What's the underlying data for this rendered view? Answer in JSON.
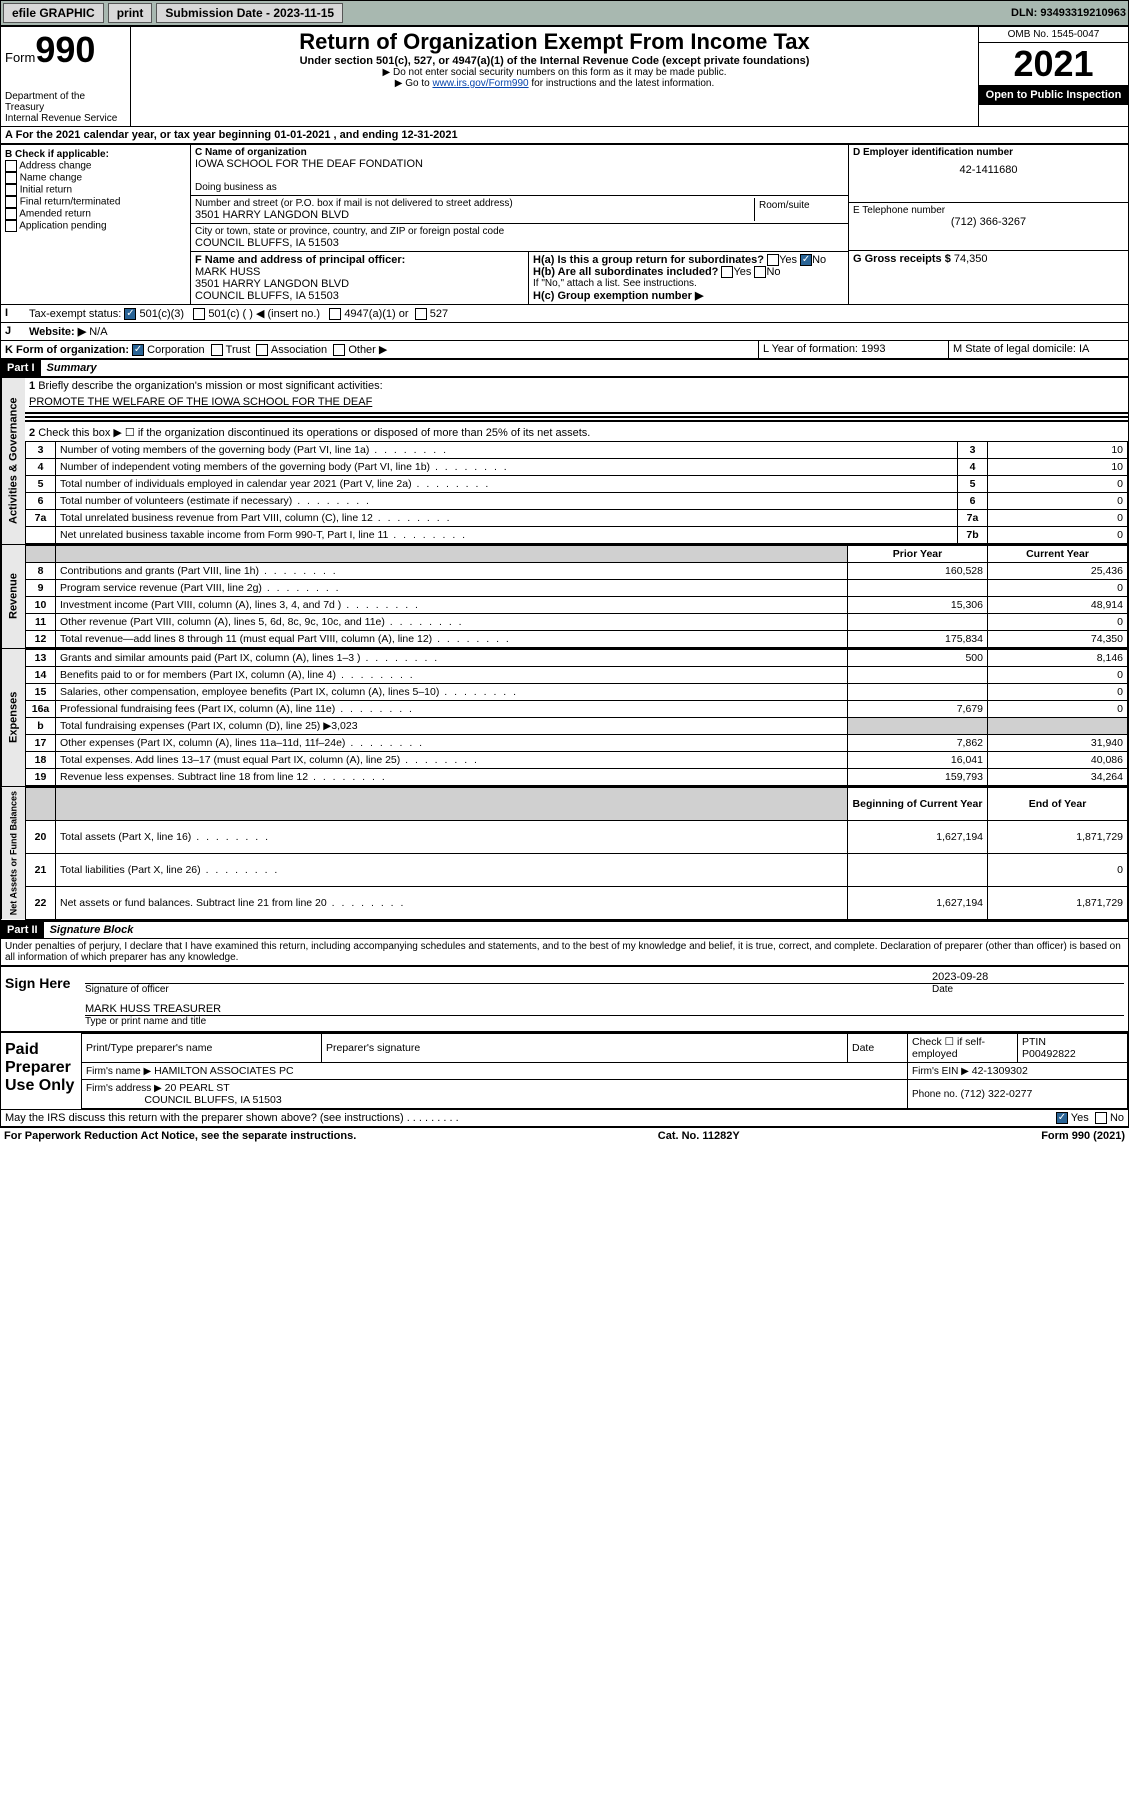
{
  "topbar": {
    "efile": "efile GRAPHIC",
    "print": "print",
    "sub_label": "Submission Date - 2023-11-15",
    "dln": "DLN: 93493319210963"
  },
  "header": {
    "form_label": "Form",
    "form_num": "990",
    "dept": "Department of the Treasury",
    "irs": "Internal Revenue Service",
    "title": "Return of Organization Exempt From Income Tax",
    "sub1": "Under section 501(c), 527, or 4947(a)(1) of the Internal Revenue Code (except private foundations)",
    "sub2": "▶ Do not enter social security numbers on this form as it may be made public.",
    "sub3_pre": "▶ Go to ",
    "sub3_link": "www.irs.gov/Form990",
    "sub3_post": " for instructions and the latest information.",
    "omb": "OMB No. 1545-0047",
    "year": "2021",
    "open": "Open to Public Inspection"
  },
  "line_a": "For the 2021 calendar year, or tax year beginning 01-01-2021   , and ending 12-31-2021",
  "section_b": {
    "label": "B Check if applicable:",
    "opts": [
      "Address change",
      "Name change",
      "Initial return",
      "Final return/terminated",
      "Amended return",
      "Application pending"
    ],
    "c_label": "C Name of organization",
    "org_name": "IOWA SCHOOL FOR THE DEAF FONDATION",
    "dba": "Doing business as",
    "addr_label": "Number and street (or P.O. box if mail is not delivered to street address)",
    "room": "Room/suite",
    "addr": "3501 HARRY LANGDON BLVD",
    "city_label": "City or town, state or province, country, and ZIP or foreign postal code",
    "city": "COUNCIL BLUFFS, IA  51503",
    "d_label": "D Employer identification number",
    "ein": "42-1411680",
    "e_label": "E Telephone number",
    "phone": "(712) 366-3267",
    "g_label": "G Gross receipts $",
    "g_val": "74,350",
    "f_label": "F Name and address of principal officer:",
    "f_name": "MARK HUSS",
    "f_addr1": "3501 HARRY LANGDON BLVD",
    "f_addr2": "COUNCIL BLUFFS, IA  51503",
    "ha": "H(a)  Is this a group return for subordinates?",
    "hb": "H(b)  Are all subordinates included?",
    "hb_note": "If \"No,\" attach a list. See instructions.",
    "hc": "H(c)  Group exemption number ▶",
    "yes": "Yes",
    "no": "No"
  },
  "line_i": {
    "label": "Tax-exempt status:",
    "opt1": "501(c)(3)",
    "opt2": "501(c) (  ) ◀ (insert no.)",
    "opt3": "4947(a)(1) or",
    "opt4": "527"
  },
  "line_j": {
    "label": "Website: ▶",
    "val": "N/A"
  },
  "line_k": {
    "label": "K Form of organization:",
    "opts": [
      "Corporation",
      "Trust",
      "Association",
      "Other ▶"
    ],
    "l": "L Year of formation: 1993",
    "m": "M State of legal domicile: IA"
  },
  "part1": {
    "num": "Part I",
    "title": "Summary",
    "q1": "Briefly describe the organization's mission or most significant activities:",
    "q1_ans": "PROMOTE THE WELFARE OF THE IOWA SCHOOL FOR THE DEAF",
    "q2": "Check this box ▶ ☐  if the organization discontinued its operations or disposed of more than 25% of its net assets.",
    "gov_label": "Activities & Governance",
    "rev_label": "Revenue",
    "exp_label": "Expenses",
    "net_label": "Net Assets or Fund Balances",
    "rows_gov": [
      {
        "n": "3",
        "t": "Number of voting members of the governing body (Part VI, line 1a)",
        "b": "3",
        "v": "10"
      },
      {
        "n": "4",
        "t": "Number of independent voting members of the governing body (Part VI, line 1b)",
        "b": "4",
        "v": "10"
      },
      {
        "n": "5",
        "t": "Total number of individuals employed in calendar year 2021 (Part V, line 2a)",
        "b": "5",
        "v": "0"
      },
      {
        "n": "6",
        "t": "Total number of volunteers (estimate if necessary)",
        "b": "6",
        "v": "0"
      },
      {
        "n": "7a",
        "t": "Total unrelated business revenue from Part VIII, column (C), line 12",
        "b": "7a",
        "v": "0"
      },
      {
        "n": "",
        "t": "Net unrelated business taxable income from Form 990-T, Part I, line 11",
        "b": "7b",
        "v": "0"
      }
    ],
    "py": "Prior Year",
    "cy": "Current Year",
    "rows_rev": [
      {
        "n": "8",
        "t": "Contributions and grants (Part VIII, line 1h)",
        "p": "160,528",
        "c": "25,436"
      },
      {
        "n": "9",
        "t": "Program service revenue (Part VIII, line 2g)",
        "p": "",
        "c": "0"
      },
      {
        "n": "10",
        "t": "Investment income (Part VIII, column (A), lines 3, 4, and 7d )",
        "p": "15,306",
        "c": "48,914"
      },
      {
        "n": "11",
        "t": "Other revenue (Part VIII, column (A), lines 5, 6d, 8c, 9c, 10c, and 11e)",
        "p": "",
        "c": "0"
      },
      {
        "n": "12",
        "t": "Total revenue—add lines 8 through 11 (must equal Part VIII, column (A), line 12)",
        "p": "175,834",
        "c": "74,350"
      }
    ],
    "rows_exp": [
      {
        "n": "13",
        "t": "Grants and similar amounts paid (Part IX, column (A), lines 1–3 )",
        "p": "500",
        "c": "8,146"
      },
      {
        "n": "14",
        "t": "Benefits paid to or for members (Part IX, column (A), line 4)",
        "p": "",
        "c": "0"
      },
      {
        "n": "15",
        "t": "Salaries, other compensation, employee benefits (Part IX, column (A), lines 5–10)",
        "p": "",
        "c": "0"
      },
      {
        "n": "16a",
        "t": "Professional fundraising fees (Part IX, column (A), line 11e)",
        "p": "7,679",
        "c": "0"
      },
      {
        "n": "b",
        "t": "Total fundraising expenses (Part IX, column (D), line 25) ▶3,023",
        "p": "",
        "c": "",
        "grey": true
      },
      {
        "n": "17",
        "t": "Other expenses (Part IX, column (A), lines 11a–11d, 11f–24e)",
        "p": "7,862",
        "c": "31,940"
      },
      {
        "n": "18",
        "t": "Total expenses. Add lines 13–17 (must equal Part IX, column (A), line 25)",
        "p": "16,041",
        "c": "40,086"
      },
      {
        "n": "19",
        "t": "Revenue less expenses. Subtract line 18 from line 12",
        "p": "159,793",
        "c": "34,264"
      }
    ],
    "boy": "Beginning of Current Year",
    "eoy": "End of Year",
    "rows_net": [
      {
        "n": "20",
        "t": "Total assets (Part X, line 16)",
        "p": "1,627,194",
        "c": "1,871,729"
      },
      {
        "n": "21",
        "t": "Total liabilities (Part X, line 26)",
        "p": "",
        "c": "0"
      },
      {
        "n": "22",
        "t": "Net assets or fund balances. Subtract line 21 from line 20",
        "p": "1,627,194",
        "c": "1,871,729"
      }
    ]
  },
  "part2": {
    "num": "Part II",
    "title": "Signature Block",
    "decl": "Under penalties of perjury, I declare that I have examined this return, including accompanying schedules and statements, and to the best of my knowledge and belief, it is true, correct, and complete. Declaration of preparer (other than officer) is based on all information of which preparer has any knowledge.",
    "sign_here": "Sign Here",
    "sig_officer": "Signature of officer",
    "sig_date": "2023-09-28",
    "date_lbl": "Date",
    "officer_name": "MARK HUSS  TREASURER",
    "type_name": "Type or print name and title",
    "paid": "Paid Preparer Use Only",
    "prep_name_lbl": "Print/Type preparer's name",
    "prep_sig_lbl": "Preparer's signature",
    "check_self": "Check ☐ if self-employed",
    "ptin_lbl": "PTIN",
    "ptin": "P00492822",
    "firm_name_lbl": "Firm's name    ▶",
    "firm_name": "HAMILTON ASSOCIATES PC",
    "firm_ein_lbl": "Firm's EIN ▶",
    "firm_ein": "42-1309302",
    "firm_addr_lbl": "Firm's address ▶",
    "firm_addr1": "20 PEARL ST",
    "firm_addr2": "COUNCIL BLUFFS, IA  51503",
    "phone_lbl": "Phone no.",
    "firm_phone": "(712) 322-0277",
    "may_irs": "May the IRS discuss this return with the preparer shown above? (see instructions)"
  },
  "footer": {
    "left": "For Paperwork Reduction Act Notice, see the separate instructions.",
    "mid": "Cat. No. 11282Y",
    "right": "Form 990 (2021)"
  }
}
